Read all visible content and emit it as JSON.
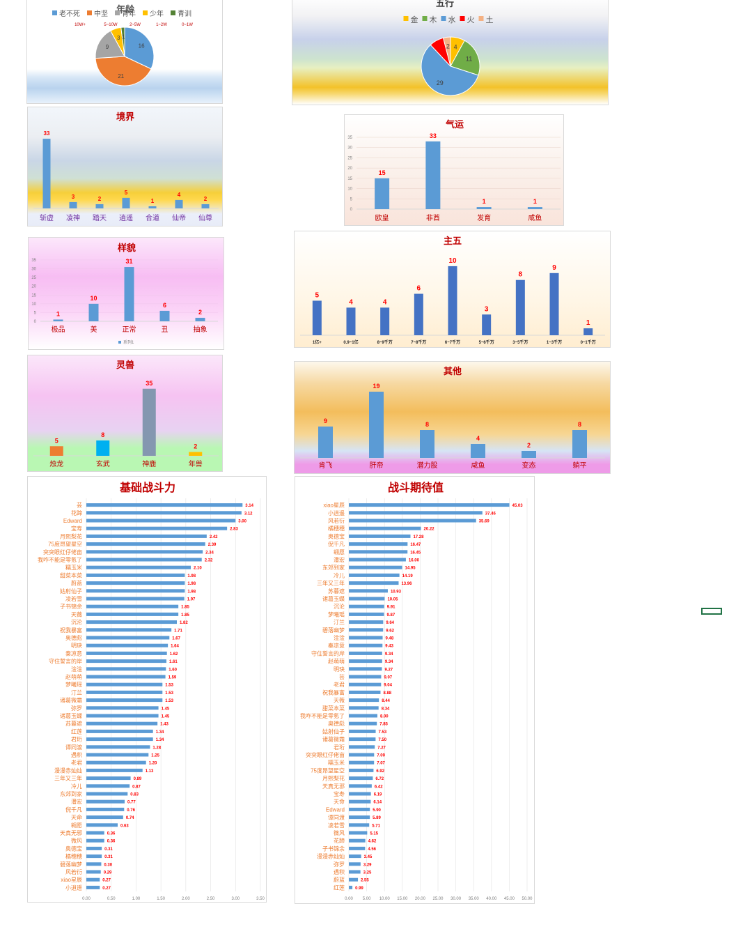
{
  "chart_data": [
    {
      "id": "age",
      "type": "pie",
      "title": "年龄",
      "legend": [
        "老不死",
        "中坚",
        "青年",
        "少年",
        "青训"
      ],
      "legend_notes": [
        "10W+",
        "5~10W",
        "2~5W",
        "1~2W",
        "0~1W"
      ],
      "values": [
        16,
        21,
        9,
        3,
        1
      ],
      "colors": [
        "#5b9bd5",
        "#ed7d31",
        "#a5a5a5",
        "#ffc000",
        "#548235"
      ]
    },
    {
      "id": "wuxing",
      "type": "pie",
      "title": "五行",
      "legend": [
        "金",
        "木",
        "水",
        "火",
        "土"
      ],
      "values": [
        4,
        11,
        29,
        4,
        2
      ],
      "labels": [
        "4",
        "11",
        "29",
        "",
        "2"
      ],
      "colors": [
        "#ffc000",
        "#70ad47",
        "#5b9bd5",
        "#ff0000",
        "#f4b183"
      ]
    },
    {
      "id": "jingjie",
      "type": "bar",
      "title": "境界",
      "categories": [
        "斩虚",
        "凌神",
        "踏天",
        "逍遥",
        "合道",
        "仙帝",
        "仙尊"
      ],
      "values": [
        33,
        3,
        2,
        5,
        1,
        4,
        2
      ],
      "ylim": [
        0,
        35
      ]
    },
    {
      "id": "qiyun",
      "type": "bar",
      "title": "气运",
      "categories": [
        "欧皇",
        "非酋",
        "发育",
        "咸鱼"
      ],
      "values": [
        15,
        33,
        1,
        1
      ],
      "yticks": [
        "35",
        "30",
        "25",
        "20",
        "15",
        "10",
        "5",
        "0"
      ],
      "ylim": [
        0,
        35
      ]
    },
    {
      "id": "yangmao",
      "type": "bar",
      "title": "样貌",
      "categories": [
        "极品",
        "美",
        "正常",
        "丑",
        "抽象"
      ],
      "values": [
        1,
        10,
        31,
        6,
        2
      ],
      "yticks": [
        "35",
        "30",
        "25",
        "20",
        "15",
        "10",
        "5",
        "0"
      ],
      "legend": [
        "系列1"
      ],
      "ylim": [
        0,
        35
      ]
    },
    {
      "id": "zhuwu",
      "type": "bar",
      "title": "主五",
      "categories": [
        "1亿+",
        "0.9~1亿",
        "8~9千万",
        "7~8千万",
        "6~7千万",
        "5~6千万",
        "3~5千万",
        "1~3千万",
        "0~1千万"
      ],
      "values": [
        5,
        4,
        4,
        6,
        10,
        3,
        8,
        9,
        1
      ],
      "ylim": [
        0,
        11
      ]
    },
    {
      "id": "lingshou",
      "type": "bar",
      "title": "灵兽",
      "categories": [
        "烛龙",
        "玄武",
        "神鹿",
        "年兽"
      ],
      "values": [
        5,
        8,
        35,
        2
      ],
      "colors": [
        "#ed7d31",
        "#00b0f0",
        "#8497b0",
        "#ffc000"
      ],
      "ylim": [
        0,
        36
      ]
    },
    {
      "id": "qita",
      "type": "bar",
      "title": "其他",
      "categories": [
        "肯飞",
        "肝帝",
        "潜力股",
        "咸鱼",
        "变态",
        "躺平"
      ],
      "values": [
        9,
        19,
        8,
        4,
        2,
        8
      ],
      "ylim": [
        0,
        20
      ]
    },
    {
      "id": "base",
      "type": "bar",
      "orientation": "horizontal",
      "title": "基础战斗力",
      "categories": [
        "芸",
        "花蹄",
        "Edward",
        "宝寿",
        "月熙梨花",
        "75度昂望星空",
        "突突眼红仔佬亩",
        "我咋不能是零氪了",
        "糯玉米",
        "甜菜本菜",
        "蔚蓝",
        "姑射仙子",
        "凌若雪",
        "子书锦余",
        "天薇",
        "沉沦",
        "祝我暴富",
        "奥德彪",
        "明玦",
        "秦凉意",
        "守住誓言的岸",
        "淦淦",
        "赵萌萌",
        "梦曦瑶",
        "汀兰",
        "诸葛微霜",
        "弥罗",
        "诸葛玉蝶",
        "苏暮遮",
        "红莲",
        "君珩",
        "谭同渡",
        "遇积",
        "老君",
        "漫漫赤灿灿",
        "三年又三年",
        "冷儿",
        "东郊到家",
        "潘宏",
        "倪千凡",
        "天命",
        "翱愿",
        "天真无邪",
        "微风",
        "奥德宝",
        "橘穗穗",
        "碧落幽梦",
        "风若衍",
        "xiao星辰",
        "小逍遥"
      ],
      "values": [
        3.14,
        3.12,
        3.0,
        2.83,
        2.42,
        2.39,
        2.34,
        2.32,
        2.1,
        1.98,
        1.98,
        1.98,
        1.97,
        1.85,
        1.85,
        1.82,
        1.71,
        1.67,
        1.64,
        1.62,
        1.61,
        1.6,
        1.59,
        1.53,
        1.53,
        1.53,
        1.45,
        1.45,
        1.43,
        1.34,
        1.34,
        1.28,
        1.25,
        1.2,
        1.13,
        0.89,
        0.87,
        0.83,
        0.77,
        0.76,
        0.74,
        0.63,
        0.36,
        0.36,
        0.31,
        0.31,
        0.3,
        0.29,
        0.27,
        0.27
      ],
      "xticks": [
        "0.00",
        "0.50",
        "1.00",
        "1.50",
        "2.00",
        "2.50",
        "3.00",
        "3.50"
      ],
      "xlim": [
        0,
        3.5
      ]
    },
    {
      "id": "expect",
      "type": "bar",
      "orientation": "horizontal",
      "title": "战斗期待值",
      "categories": [
        "xiao星辰",
        "小逍遥",
        "风若衍",
        "橘穗穗",
        "奥德宝",
        "倪千凡",
        "翱愿",
        "潘宏",
        "东郊到家",
        "冷儿",
        "三年又三年",
        "苏暮遮",
        "诸葛玉蝶",
        "沉沦",
        "梦曦瑶",
        "汀兰",
        "碧落幽梦",
        "淦淦",
        "秦凉意",
        "守住誓言的岸",
        "赵萌萌",
        "明玦",
        "芸",
        "老君",
        "祝我暴富",
        "天薇",
        "甜菜本菜",
        "我咋不能是零氪了",
        "奥德彪",
        "姑射仙子",
        "诸葛微霜",
        "君珩",
        "突突眼红仔佬亩",
        "糯玉米",
        "75度昂望星空",
        "月熙梨花",
        "天真无邪",
        "宝寿",
        "天命",
        "Edward",
        "谭同渡",
        "凌若雪",
        "微风",
        "花蹄",
        "子书锦余",
        "漫漫赤灿灿",
        "弥罗",
        "遇积",
        "蔚蓝",
        "红莲"
      ],
      "values": [
        45.03,
        37.46,
        35.69,
        20.22,
        17.28,
        16.47,
        16.45,
        16.0,
        14.95,
        14.19,
        13.96,
        10.93,
        10.05,
        9.91,
        9.87,
        9.64,
        9.62,
        9.48,
        9.43,
        9.34,
        9.34,
        9.27,
        9.07,
        9.04,
        8.88,
        8.44,
        8.34,
        8.0,
        7.85,
        7.53,
        7.5,
        7.27,
        7.09,
        7.07,
        6.92,
        6.72,
        6.42,
        6.19,
        6.14,
        5.9,
        5.89,
        5.71,
        5.15,
        4.62,
        4.56,
        3.45,
        3.29,
        3.25,
        2.55,
        0.99
      ],
      "xticks": [
        "0.00",
        "5.00",
        "10.00",
        "15.00",
        "20.00",
        "25.00",
        "30.00",
        "35.00",
        "40.00",
        "45.00",
        "50.00"
      ],
      "xlim": [
        0,
        50
      ]
    }
  ]
}
